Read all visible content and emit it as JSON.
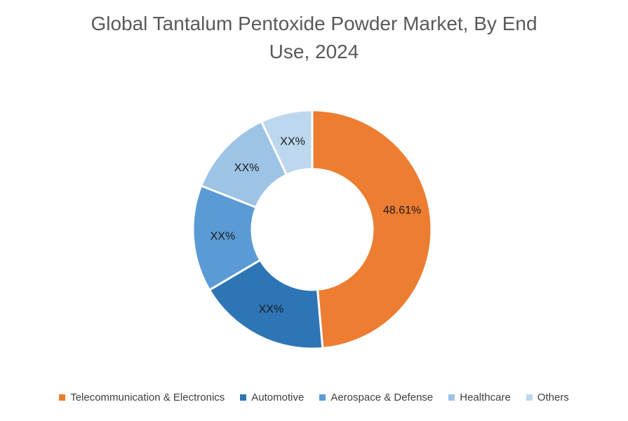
{
  "title_lines": [
    "Global Tantalum Pentoxide Powder Market, By End",
    "Use, 2024"
  ],
  "colors": {
    "background": "#ffffff",
    "title_text": "#595959",
    "slice_label_text": "#1a1a1a",
    "legend_text": "#404040",
    "slice_border": "#ffffff"
  },
  "chart_data": {
    "type": "pie",
    "subtype": "donut",
    "title": "Global Tantalum Pentoxide Powder Market, By End Use, 2024",
    "unit": "%",
    "legend_position": "bottom",
    "start_angle_deg": 0,
    "direction": "clockwise",
    "values_note": "Only the first slice shows a numeric data label (48.61%); the other slices are labeled XX% in the image, so their values are estimated from the arc angles.",
    "slices": [
      {
        "name": "Telecommunication & Electronics",
        "label": "48.61%",
        "value": 48.61,
        "color": "#ED7D31"
      },
      {
        "name": "Automotive",
        "label": "XX%",
        "value": 17.92,
        "color": "#2E75B6"
      },
      {
        "name": "Aerospace & Defense",
        "label": "XX%",
        "value": 14.44,
        "color": "#5B9BD5"
      },
      {
        "name": "Healthcare",
        "label": "XX%",
        "value": 12.03,
        "color": "#9DC3E6"
      },
      {
        "name": "Others",
        "label": "XX%",
        "value": 7.0,
        "color": "#BDD7EE"
      }
    ]
  }
}
